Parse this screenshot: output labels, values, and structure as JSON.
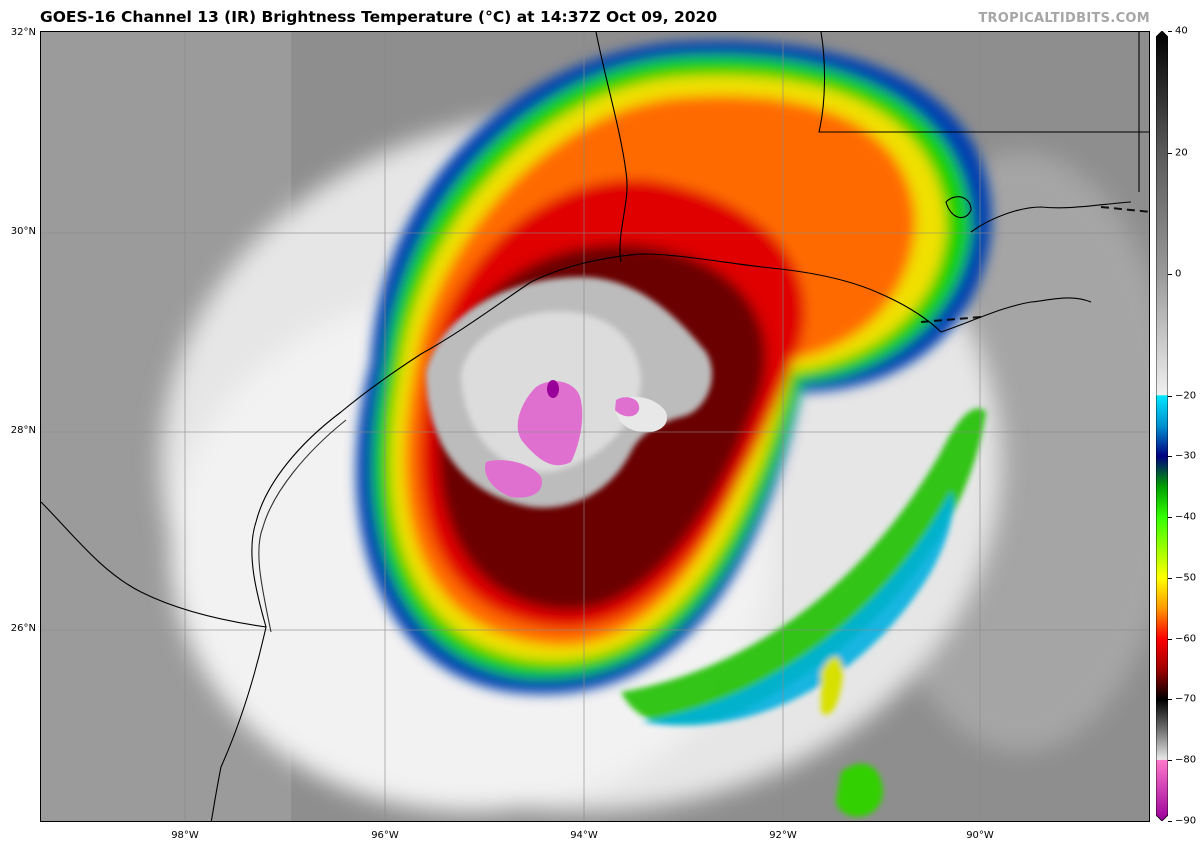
{
  "header": {
    "title": "GOES-16 Channel 13 (IR) Brightness Temperature (°C) at 14:37Z Oct 09, 2020",
    "brand": "TROPICALTIDBITS.COM"
  },
  "map": {
    "lat_labels": [
      {
        "text": "32°N",
        "lat": 32
      },
      {
        "text": "30°N",
        "lat": 30
      },
      {
        "text": "28°N",
        "lat": 28
      },
      {
        "text": "26°N",
        "lat": 26
      }
    ],
    "lon_labels": [
      {
        "text": "98°W",
        "lon": -98
      },
      {
        "text": "96°W",
        "lon": -96
      },
      {
        "text": "94°W",
        "lon": -94
      },
      {
        "text": "92°W",
        "lon": -92
      },
      {
        "text": "90°W",
        "lon": -90
      }
    ],
    "extent": {
      "lon_min": -99.45,
      "lon_max": -88.2,
      "lat_min": 24.1,
      "lat_max": 32.05
    }
  },
  "colorbar": {
    "min": -90,
    "max": 40,
    "labels": [
      {
        "text": "40",
        "value": 40
      },
      {
        "text": "20",
        "value": 20
      },
      {
        "text": "0",
        "value": 0
      },
      {
        "text": "−20",
        "value": -20
      },
      {
        "text": "−30",
        "value": -30
      },
      {
        "text": "−40",
        "value": -40
      },
      {
        "text": "−50",
        "value": -50
      },
      {
        "text": "−60",
        "value": -60
      },
      {
        "text": "−70",
        "value": -70
      },
      {
        "text": "−80",
        "value": -80
      },
      {
        "text": "−90",
        "value": -90
      }
    ],
    "stops": [
      {
        "value": 40,
        "color": "#000000"
      },
      {
        "value": 20,
        "color": "#5a5a5a"
      },
      {
        "value": 0,
        "color": "#9a9a9a"
      },
      {
        "value": -19.9,
        "color": "#f0f0f0"
      },
      {
        "value": -20,
        "color": "#00e6ff"
      },
      {
        "value": -25,
        "color": "#0090d0"
      },
      {
        "value": -30,
        "color": "#000080"
      },
      {
        "value": -35,
        "color": "#00a000"
      },
      {
        "value": -40,
        "color": "#33ff00"
      },
      {
        "value": -50,
        "color": "#ffff00"
      },
      {
        "value": -55,
        "color": "#ff9900"
      },
      {
        "value": -60,
        "color": "#ff0000"
      },
      {
        "value": -65,
        "color": "#a00000"
      },
      {
        "value": -70,
        "color": "#000000"
      },
      {
        "value": -75,
        "color": "#707070"
      },
      {
        "value": -79.9,
        "color": "#e8e8e8"
      },
      {
        "value": -80,
        "color": "#ff77cc"
      },
      {
        "value": -90,
        "color": "#990099"
      }
    ]
  }
}
